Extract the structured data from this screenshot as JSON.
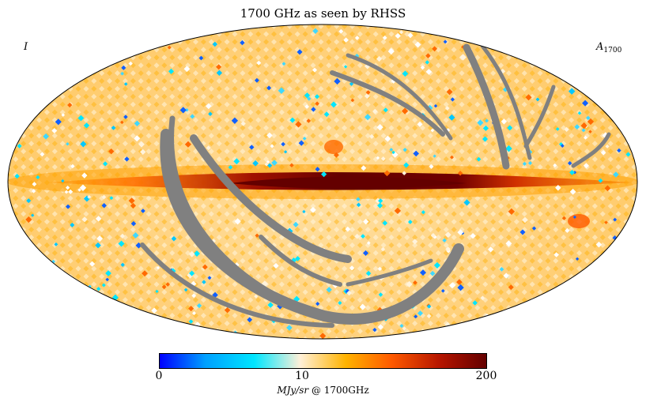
{
  "title": "1700 GHz as seen by RHSS",
  "corner_left": "I",
  "corner_right_main": "A",
  "corner_right_sub": "1700",
  "colorbar": {
    "tick_min": "0",
    "tick_mid": "10",
    "tick_max": "200",
    "unit_italic": "MJy/sr",
    "unit_rest": " @ 1700GHz",
    "colors": [
      "#0000ff",
      "#00a0ff",
      "#00e6ff",
      "#fff0d8",
      "#ffb300",
      "#ff5a00",
      "#b41400",
      "#640000"
    ]
  },
  "map": {
    "projection": "Mollweide",
    "background_color": "#ffd27f",
    "plane_color": "#640000",
    "mask_color": "#808080"
  }
}
